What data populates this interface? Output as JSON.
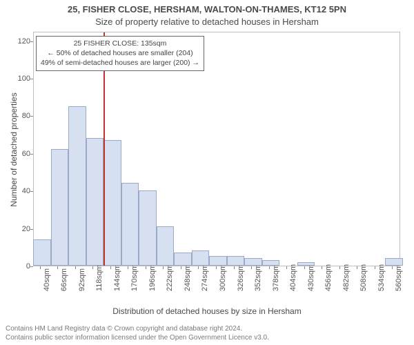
{
  "titles": {
    "line1": "25, FISHER CLOSE, HERSHAM, WALTON-ON-THAMES, KT12 5PN",
    "line2": "Size of property relative to detached houses in Hersham"
  },
  "axis": {
    "ylabel": "Number of detached properties",
    "xlabel": "Distribution of detached houses by size in Hersham"
  },
  "footer": {
    "line1": "Contains HM Land Registry data © Crown copyright and database right 2024.",
    "line2": "Contains public sector information licensed under the Open Government Licence v3.0."
  },
  "callout": {
    "line1": "25 FISHER CLOSE: 135sqm",
    "line2": "← 50% of detached houses are smaller (204)",
    "line3": "49% of semi-detached houses are larger (200) →"
  },
  "chart": {
    "type": "histogram",
    "bar_fill": "#d6e0f0",
    "bar_stroke": "#9aa9c7",
    "marker_color": "#c23030",
    "marker_value": 135,
    "background_color": "#ffffff",
    "border_color": "#bfbfbf",
    "text_color": "#4a4a4a",
    "tick_color": "#555555",
    "title_fontsize": 13,
    "label_fontsize": 12,
    "tick_fontsize": 11,
    "callout_fontsize": 10.5,
    "x": {
      "min": 30,
      "max": 572,
      "bin_width": 26,
      "tick_start": 40,
      "tick_step": 26,
      "tick_count": 21,
      "unit": "sqm"
    },
    "y": {
      "min": 0,
      "max": 125,
      "ticks": [
        0,
        20,
        40,
        60,
        80,
        100,
        120
      ]
    },
    "bins": [
      {
        "start": 30,
        "value": 14
      },
      {
        "start": 56,
        "value": 62
      },
      {
        "start": 82,
        "value": 85
      },
      {
        "start": 108,
        "value": 68
      },
      {
        "start": 134,
        "value": 67
      },
      {
        "start": 160,
        "value": 44
      },
      {
        "start": 186,
        "value": 40
      },
      {
        "start": 212,
        "value": 21
      },
      {
        "start": 238,
        "value": 7
      },
      {
        "start": 264,
        "value": 8
      },
      {
        "start": 290,
        "value": 5
      },
      {
        "start": 316,
        "value": 5
      },
      {
        "start": 342,
        "value": 4
      },
      {
        "start": 368,
        "value": 3
      },
      {
        "start": 394,
        "value": 0
      },
      {
        "start": 420,
        "value": 2
      },
      {
        "start": 446,
        "value": 0
      },
      {
        "start": 472,
        "value": 0
      },
      {
        "start": 498,
        "value": 0
      },
      {
        "start": 524,
        "value": 0
      },
      {
        "start": 550,
        "value": 4
      }
    ]
  }
}
